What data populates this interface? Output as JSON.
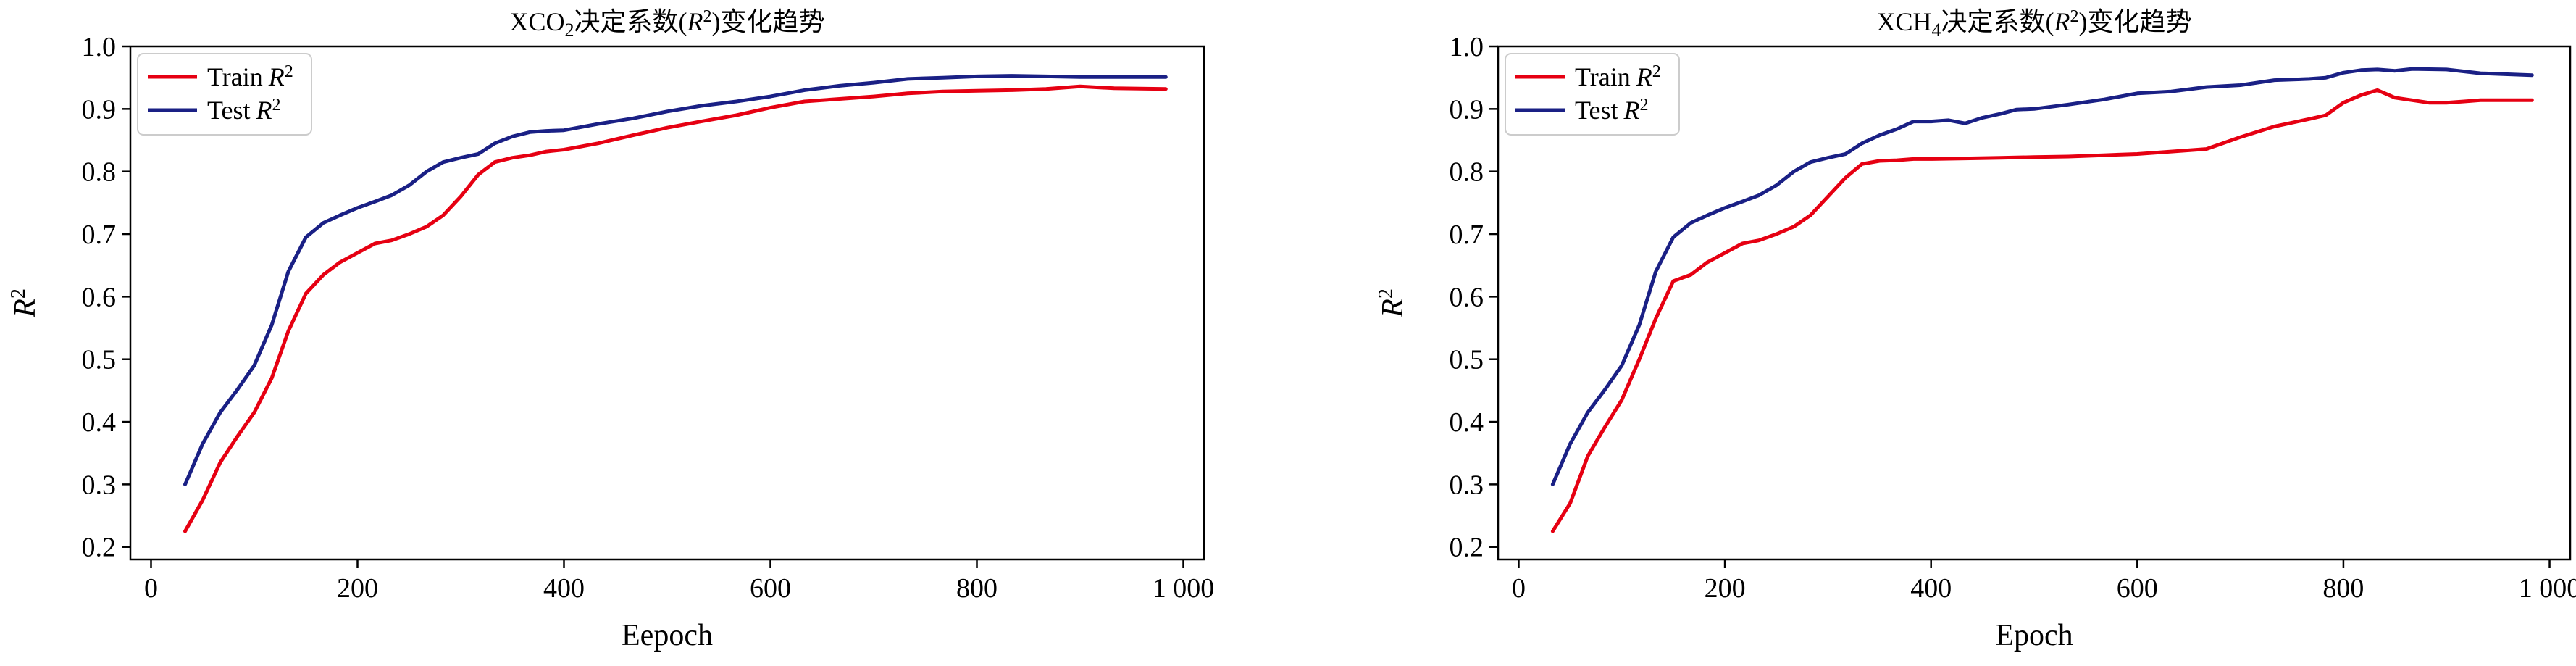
{
  "colors": {
    "train": "#e60012",
    "test": "#1a2085"
  },
  "chart_data": [
    {
      "type": "line",
      "title_main": "XCO",
      "title_sub": "2",
      "title_rest": "决定系数(",
      "title_R": "R",
      "title_sup": "2",
      "title_tail": ")变化趋势",
      "xlabel": "Eepoch",
      "ylabel": "R",
      "ylabel_sup": "2",
      "xlim": [
        -20,
        1020
      ],
      "ylim": [
        0.18,
        1.0
      ],
      "xticks": [
        0,
        200,
        400,
        600,
        800,
        1000
      ],
      "xtick_labels": [
        "0",
        "200",
        "400",
        "600",
        "800",
        "1 000"
      ],
      "yticks": [
        0.2,
        0.3,
        0.4,
        0.5,
        0.6,
        0.7,
        0.8,
        0.9,
        1.0
      ],
      "ytick_labels": [
        "0.2",
        "0.3",
        "0.4",
        "0.5",
        "0.6",
        "0.7",
        "0.8",
        "0.9",
        "1.0"
      ],
      "legend_position": "top-left",
      "series": [
        {
          "key": "train",
          "name": "Train",
          "name_sup": "2",
          "x": [
            33,
            50,
            67,
            83,
            100,
            117,
            133,
            150,
            167,
            183,
            200,
            217,
            233,
            250,
            267,
            283,
            300,
            317,
            333,
            350,
            367,
            383,
            400,
            433,
            467,
            500,
            533,
            567,
            600,
            633,
            667,
            700,
            733,
            767,
            800,
            833,
            867,
            900,
            933,
            983
          ],
          "y": [
            0.225,
            0.275,
            0.335,
            0.375,
            0.415,
            0.47,
            0.545,
            0.605,
            0.635,
            0.655,
            0.67,
            0.685,
            0.69,
            0.7,
            0.712,
            0.73,
            0.76,
            0.795,
            0.815,
            0.822,
            0.826,
            0.832,
            0.835,
            0.845,
            0.858,
            0.87,
            0.88,
            0.89,
            0.902,
            0.912,
            0.916,
            0.92,
            0.925,
            0.928,
            0.929,
            0.93,
            0.932,
            0.936,
            0.933,
            0.932
          ]
        },
        {
          "key": "test",
          "name": "Test",
          "name_sup": "2",
          "x": [
            33,
            50,
            67,
            83,
            100,
            117,
            133,
            150,
            167,
            183,
            200,
            217,
            233,
            250,
            267,
            283,
            300,
            317,
            333,
            350,
            367,
            383,
            400,
            433,
            467,
            500,
            533,
            567,
            600,
            633,
            667,
            700,
            733,
            767,
            800,
            833,
            867,
            900,
            933,
            983
          ],
          "y": [
            0.3,
            0.365,
            0.415,
            0.45,
            0.49,
            0.555,
            0.64,
            0.695,
            0.718,
            0.73,
            0.742,
            0.752,
            0.762,
            0.778,
            0.8,
            0.815,
            0.822,
            0.828,
            0.845,
            0.856,
            0.863,
            0.865,
            0.866,
            0.876,
            0.885,
            0.896,
            0.905,
            0.912,
            0.92,
            0.93,
            0.937,
            0.942,
            0.948,
            0.95,
            0.952,
            0.953,
            0.952,
            0.951,
            0.951,
            0.951
          ]
        }
      ]
    },
    {
      "type": "line",
      "title_main": "XCH",
      "title_sub": "4",
      "title_rest": "决定系数(",
      "title_R": "R",
      "title_sup": "2",
      "title_tail": ")变化趋势",
      "xlabel": "Epoch",
      "ylabel": "R",
      "ylabel_sup": "2",
      "xlim": [
        -20,
        1020
      ],
      "ylim": [
        0.18,
        1.0
      ],
      "xticks": [
        0,
        200,
        400,
        600,
        800,
        1000
      ],
      "xtick_labels": [
        "0",
        "200",
        "400",
        "600",
        "800",
        "1 000"
      ],
      "yticks": [
        0.2,
        0.3,
        0.4,
        0.5,
        0.6,
        0.7,
        0.8,
        0.9,
        1.0
      ],
      "ytick_labels": [
        "0.2",
        "0.3",
        "0.4",
        "0.5",
        "0.6",
        "0.7",
        "0.8",
        "0.9",
        "1.0"
      ],
      "legend_position": "top-left",
      "series": [
        {
          "key": "train",
          "name": "Train",
          "name_sup": "2",
          "x": [
            33,
            50,
            67,
            83,
            100,
            117,
            133,
            150,
            167,
            183,
            200,
            217,
            233,
            250,
            267,
            283,
            300,
            317,
            333,
            350,
            367,
            383,
            400,
            433,
            467,
            500,
            533,
            567,
            600,
            633,
            667,
            683,
            700,
            733,
            767,
            783,
            800,
            817,
            833,
            850,
            883,
            900,
            917,
            933,
            950,
            983
          ],
          "y": [
            0.225,
            0.27,
            0.345,
            0.39,
            0.435,
            0.5,
            0.565,
            0.625,
            0.635,
            0.655,
            0.67,
            0.685,
            0.69,
            0.7,
            0.712,
            0.73,
            0.76,
            0.79,
            0.812,
            0.817,
            0.818,
            0.82,
            0.82,
            0.821,
            0.822,
            0.823,
            0.824,
            0.826,
            0.828,
            0.832,
            0.836,
            0.845,
            0.855,
            0.872,
            0.884,
            0.89,
            0.91,
            0.922,
            0.93,
            0.918,
            0.91,
            0.91,
            0.912,
            0.914,
            0.914,
            0.914
          ]
        },
        {
          "key": "test",
          "name": "Test",
          "name_sup": "2",
          "x": [
            33,
            50,
            67,
            83,
            100,
            117,
            133,
            150,
            167,
            183,
            200,
            217,
            233,
            250,
            267,
            283,
            300,
            317,
            333,
            350,
            367,
            383,
            400,
            417,
            433,
            450,
            467,
            483,
            500,
            533,
            567,
            600,
            633,
            667,
            700,
            733,
            767,
            783,
            800,
            817,
            833,
            850,
            867,
            900,
            933,
            950,
            983
          ],
          "y": [
            0.3,
            0.365,
            0.415,
            0.45,
            0.49,
            0.555,
            0.64,
            0.695,
            0.718,
            0.73,
            0.742,
            0.752,
            0.762,
            0.778,
            0.8,
            0.815,
            0.822,
            0.828,
            0.845,
            0.858,
            0.868,
            0.88,
            0.88,
            0.882,
            0.877,
            0.886,
            0.892,
            0.899,
            0.9,
            0.907,
            0.915,
            0.925,
            0.928,
            0.935,
            0.938,
            0.946,
            0.948,
            0.95,
            0.958,
            0.962,
            0.963,
            0.961,
            0.964,
            0.963,
            0.957,
            0.956,
            0.954
          ]
        }
      ]
    }
  ]
}
